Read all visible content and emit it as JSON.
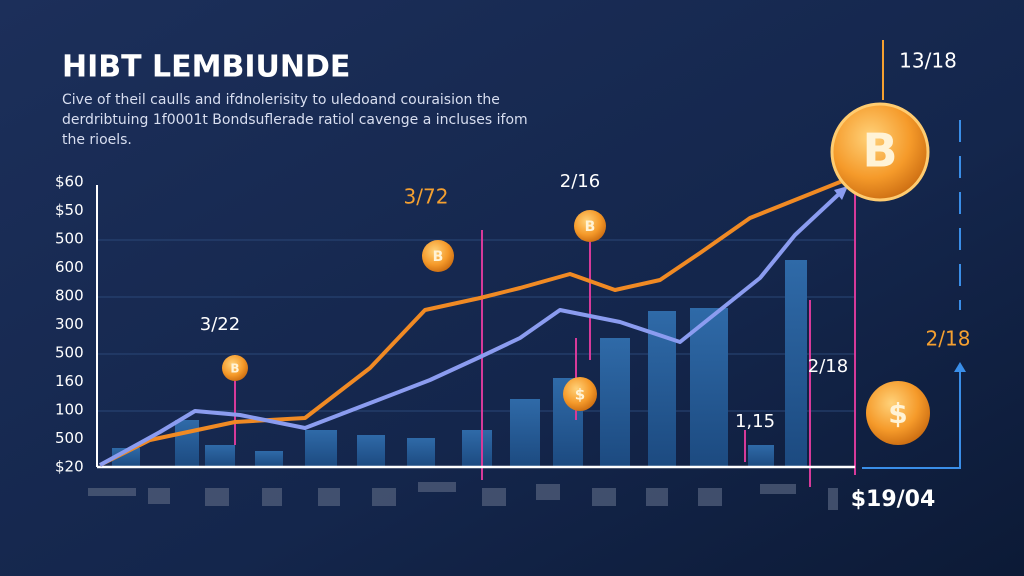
{
  "title": "HIBT LEMBIUNDE",
  "subtitle": [
    "Cive of theil caulls and ifdnolerisity to uledoand couraision the",
    "derdribtuing 1f0001t Bondsuflerade ratiol cavenge a incluses ifom",
    "the rioels."
  ],
  "y_labels": [
    "$60",
    "$50",
    "500",
    "600",
    "800",
    "300",
    "500",
    "160",
    "100",
    "500",
    "$20"
  ],
  "annotations": [
    "3/22",
    "3/72",
    "2/16",
    "13/18",
    "2/18",
    "2/18",
    "1,15",
    "$19/04"
  ]
}
